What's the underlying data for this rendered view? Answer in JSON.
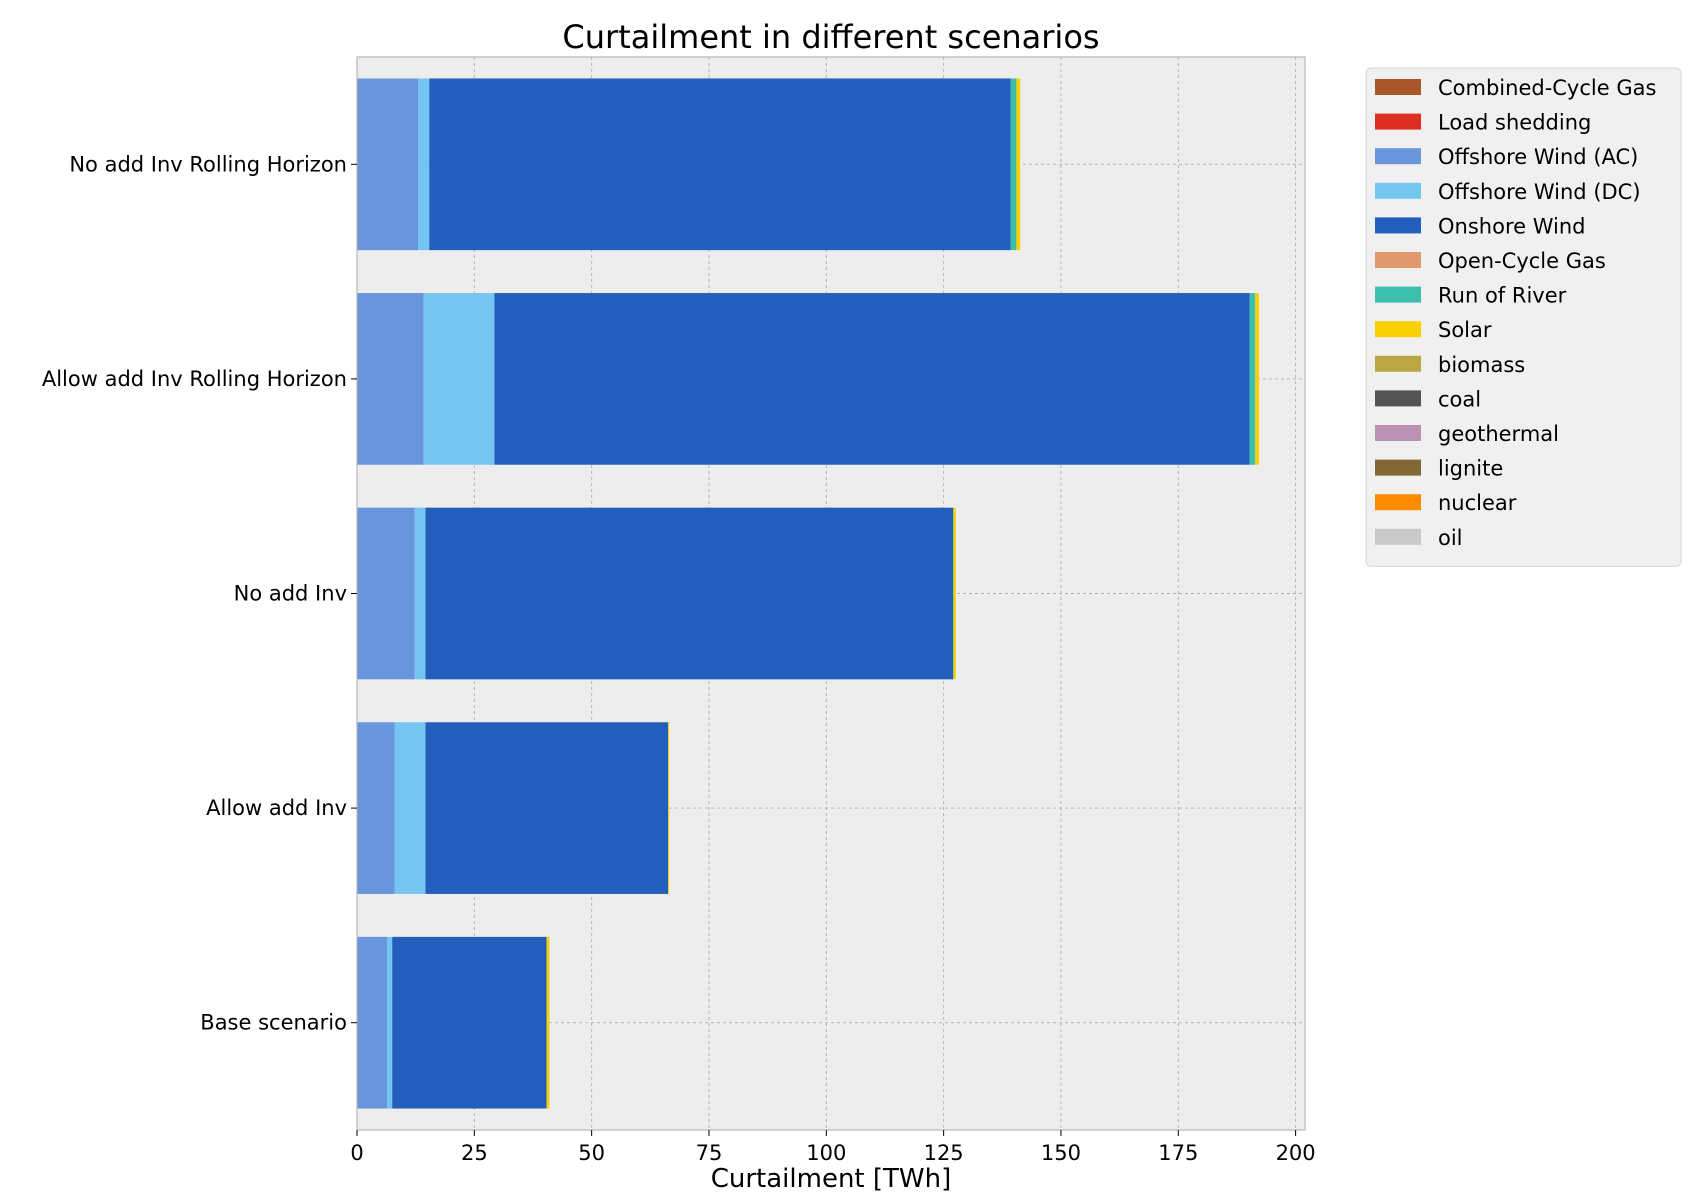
{
  "chart_data": {
    "type": "bar",
    "orientation": "horizontal",
    "stacked": true,
    "title": "Curtailment in different scenarios",
    "xlabel": "Curtailment [TWh]",
    "ylabel": "",
    "xlim": [
      0,
      202
    ],
    "xticks": [
      0,
      25,
      50,
      75,
      100,
      125,
      150,
      175,
      200
    ],
    "grid": true,
    "legend_position": "outside right, top",
    "categories": [
      "No add Inv Rolling Horizon",
      "Allow add Inv Rolling Horizon",
      "No add Inv",
      "Allow add Inv",
      "Base scenario"
    ],
    "series": [
      {
        "name": "Combined-Cycle Gas",
        "color": "#a9562a",
        "values": [
          0,
          0,
          0,
          0,
          0
        ]
      },
      {
        "name": "Load shedding",
        "color": "#dd2e23",
        "values": [
          0,
          0,
          0,
          0,
          0
        ]
      },
      {
        "name": "Offshore Wind (AC)",
        "color": "#6995dd",
        "values": [
          13.0,
          14.2,
          12.3,
          8.0,
          6.4
        ]
      },
      {
        "name": "Offshore Wind (DC)",
        "color": "#74c5f0",
        "values": [
          2.4,
          15.1,
          2.3,
          6.6,
          1.1
        ]
      },
      {
        "name": "Onshore Wind",
        "color": "#235ebc",
        "values": [
          123.9,
          160.9,
          112.4,
          51.7,
          32.9
        ]
      },
      {
        "name": "Open-Cycle Gas",
        "color": "#e0986c",
        "values": [
          0,
          0,
          0,
          0,
          0
        ]
      },
      {
        "name": "Run of River",
        "color": "#3dbfb0",
        "values": [
          1.2,
          1.2,
          0.1,
          0,
          0
        ]
      },
      {
        "name": "Solar",
        "color": "#f9d002",
        "values": [
          0.8,
          0.8,
          0.5,
          0.2,
          0.6
        ]
      },
      {
        "name": "biomass",
        "color": "#baa741",
        "values": [
          0,
          0,
          0,
          0,
          0
        ]
      },
      {
        "name": "coal",
        "color": "#545454",
        "values": [
          0,
          0,
          0,
          0,
          0
        ]
      },
      {
        "name": "geothermal",
        "color": "#ba91b1",
        "values": [
          0,
          0,
          0,
          0,
          0
        ]
      },
      {
        "name": "lignite",
        "color": "#826837",
        "values": [
          0,
          0,
          0,
          0,
          0
        ]
      },
      {
        "name": "nuclear",
        "color": "#ff8c00",
        "values": [
          0,
          0,
          0,
          0,
          0
        ]
      },
      {
        "name": "oil",
        "color": "#c9c9c9",
        "values": [
          0,
          0,
          0,
          0,
          0
        ]
      }
    ]
  }
}
